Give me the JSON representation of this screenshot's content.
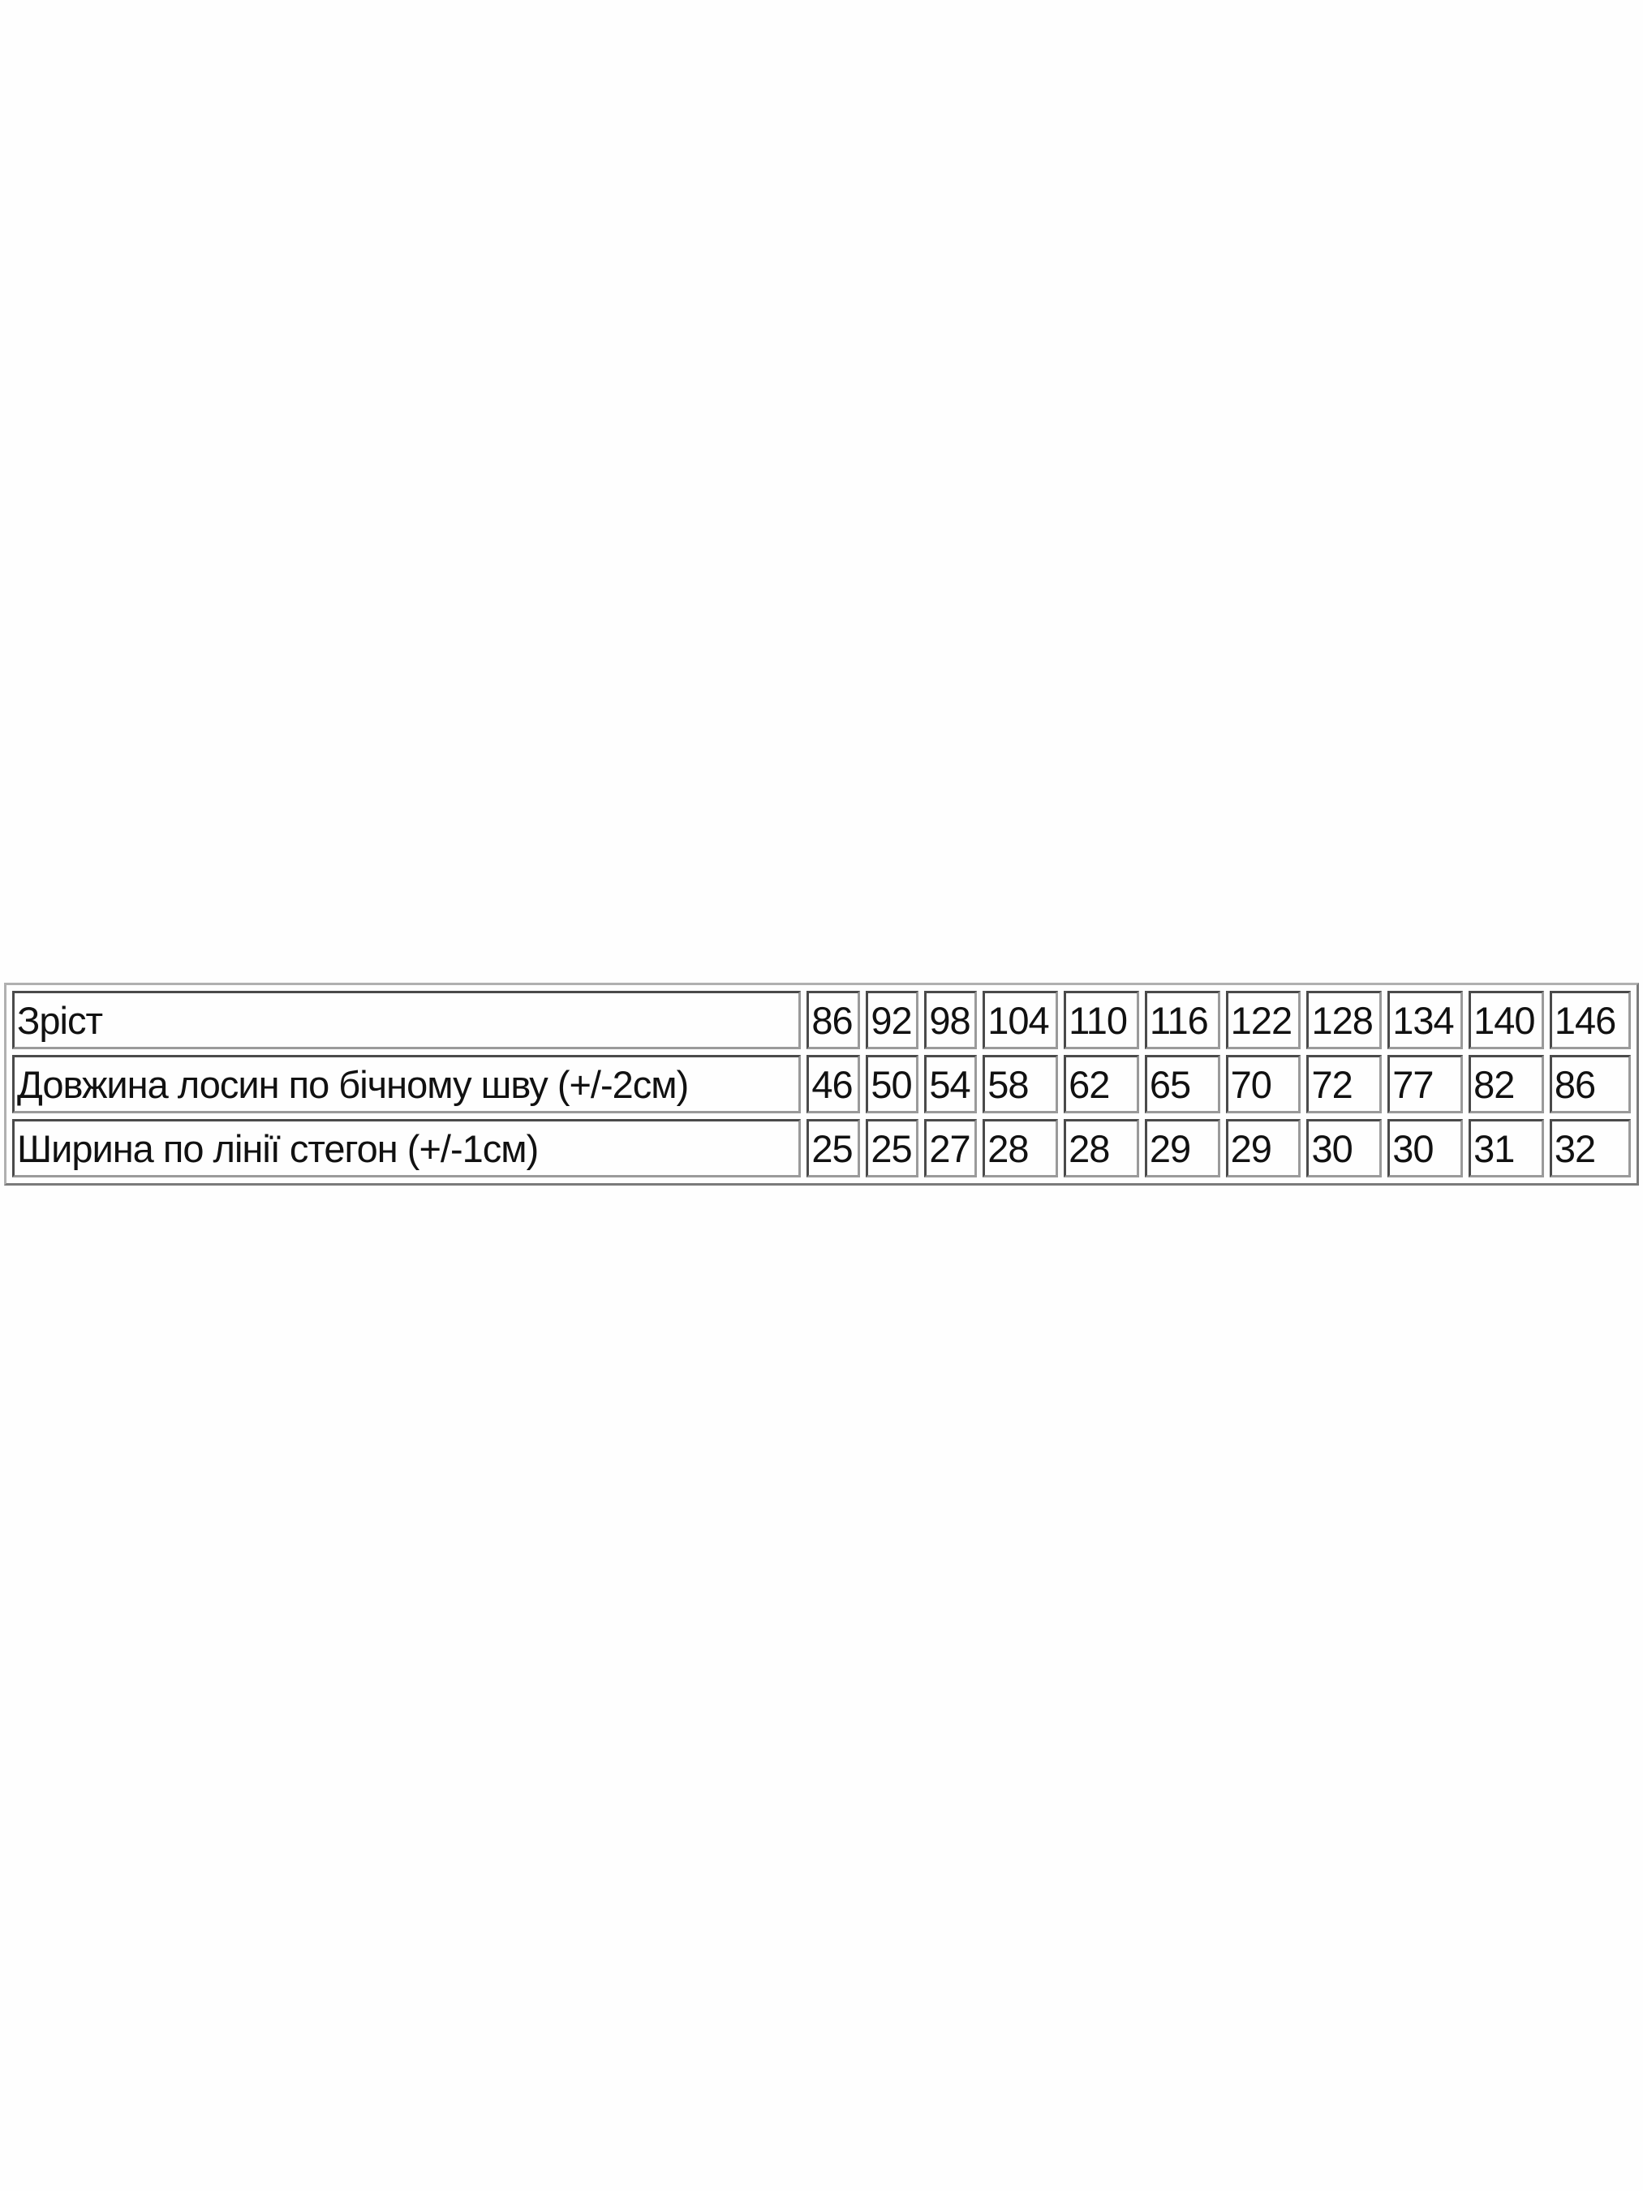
{
  "size_table": {
    "rows": [
      {
        "label": "Зріст",
        "values": [
          "86",
          "92",
          "98",
          "104",
          "110",
          "116",
          "122",
          "128",
          "134",
          "140",
          "146"
        ]
      },
      {
        "label": "Довжина лосин по бічному шву (+/-2см)",
        "values": [
          "46",
          "50",
          "54",
          "58",
          "62",
          "65",
          "70",
          "72",
          "77",
          "82",
          "86"
        ]
      },
      {
        "label": "Ширина по лінії стегон (+/-1см)",
        "values": [
          "25",
          "25",
          "27",
          "28",
          "28",
          "29",
          "29",
          "30",
          "30",
          "31",
          "32"
        ]
      }
    ]
  }
}
